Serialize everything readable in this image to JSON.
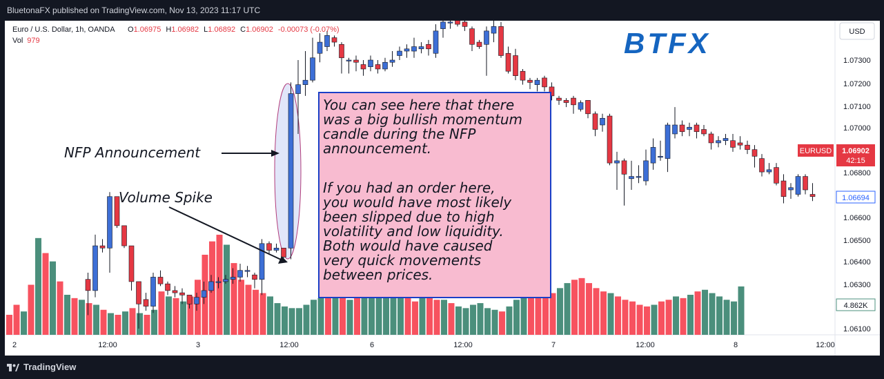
{
  "header": {
    "publisher_line": "BluetonaFX published on TradingView.com, Nov 13, 2023 11:17 UTC"
  },
  "footer": {
    "brand": "TradingView"
  },
  "legend": {
    "symbol": "Euro / U.S. Dollar, 1h, OANDA",
    "open_label": "O",
    "open": "1.06975",
    "high_label": "H",
    "high": "1.06982",
    "low_label": "L",
    "low": "1.06892",
    "close_label": "C",
    "close": "1.06902",
    "change": "-0.00073 (-0.07%)",
    "vol_label": "Vol",
    "vol_value": "979"
  },
  "currency_button": "USD",
  "logo_text": "BTFX",
  "price_scale": {
    "ticks": [
      "1.07300",
      "1.07200",
      "1.07100",
      "1.07000",
      "1.06800",
      "1.06600",
      "1.06500",
      "1.06400",
      "1.06300",
      "1.06100"
    ],
    "symbol_tag": "EURUSD",
    "last_price": "1.06902",
    "countdown": "42:15",
    "crosshair_price": "1.06694",
    "volume_tag": "4.862K"
  },
  "time_axis": [
    "2",
    "12:00",
    "3",
    "12:00",
    "6",
    "12:00",
    "7",
    "12:00",
    "8",
    "12:00"
  ],
  "annotations": {
    "nfp": "NFP Announcement",
    "volume_spike": "Volume Spike",
    "note_lines_1": [
      "You can see here that there",
      "was a big bullish momentum",
      "candle during the NFP",
      "announcement."
    ],
    "note_lines_2": [
      "If you had an order here,",
      "you would have most likely",
      "been slipped due to high",
      "volatility and low liquidity.",
      "Both would have caused",
      "very quick movements",
      "between prices."
    ]
  },
  "colors": {
    "up": "#3d6fd6",
    "down": "#e53843",
    "vol_up": "#4b8f7c",
    "vol_down": "#f7525f",
    "note_bg": "#f8bbd0",
    "note_border": "#1a3fc7"
  },
  "chart_data": {
    "type": "candlestick",
    "symbol": "EURUSD",
    "timeframe": "1h",
    "ylim": [
      1.0605,
      1.0745
    ],
    "price_ticks": [
      1.073,
      1.072,
      1.071,
      1.07,
      1.068,
      1.066,
      1.065,
      1.064,
      1.063,
      1.061
    ],
    "candles": [
      [
        1.0632,
        1.0627,
        1.0635,
        1.0616
      ],
      [
        1.0627,
        1.0647,
        1.0652,
        1.0624
      ],
      [
        1.0647,
        1.0646,
        1.065,
        1.0644
      ],
      [
        1.0646,
        1.0669,
        1.0671,
        1.0635
      ],
      [
        1.0669,
        1.0656,
        1.0667,
        1.0655
      ],
      [
        1.0656,
        1.0647,
        1.0652,
        1.0646
      ],
      [
        1.0647,
        1.0631,
        1.0644,
        1.0627
      ],
      [
        1.0631,
        1.0621,
        1.063,
        1.061
      ],
      [
        1.0623,
        1.062,
        1.0626,
        1.0618
      ],
      [
        1.062,
        1.0633,
        1.0635,
        1.0617
      ],
      [
        1.0633,
        1.063,
        1.0636,
        1.0629
      ],
      [
        1.063,
        1.0627,
        1.0631,
        1.0625
      ],
      [
        1.0627,
        1.0626,
        1.0629,
        1.0624
      ],
      [
        1.0626,
        1.0625,
        1.0628,
        1.0621
      ],
      [
        1.0625,
        1.0621,
        1.0624,
        1.0619
      ],
      [
        1.0621,
        1.0624,
        1.0626,
        1.0618
      ],
      [
        1.0624,
        1.0627,
        1.0631,
        1.0621
      ],
      [
        1.0627,
        1.0631,
        1.0634,
        1.0626
      ],
      [
        1.0631,
        1.0631,
        1.0633,
        1.0628
      ],
      [
        1.0631,
        1.0632,
        1.0634,
        1.063
      ],
      [
        1.0632,
        1.0633,
        1.0637,
        1.063
      ],
      [
        1.0633,
        1.0636,
        1.0639,
        1.0631
      ],
      [
        1.0636,
        1.0636,
        1.0638,
        1.0633
      ],
      [
        1.0634,
        1.0632,
        1.0635,
        1.0628
      ],
      [
        1.0632,
        1.0648,
        1.065,
        1.0625
      ],
      [
        1.0648,
        1.0645,
        1.0649,
        1.0643
      ],
      [
        1.0645,
        1.0646,
        1.0648,
        1.0644
      ],
      [
        1.0646,
        1.0642,
        1.0646,
        1.0641
      ],
      [
        1.0646,
        1.0715,
        1.072,
        1.0641
      ],
      [
        1.0715,
        1.0719,
        1.073,
        1.0697
      ],
      [
        1.0719,
        1.0721,
        1.0734,
        1.0714
      ],
      [
        1.0721,
        1.0731,
        1.074,
        1.072
      ],
      [
        1.0733,
        1.0738,
        1.0742,
        1.0729
      ],
      [
        1.0736,
        1.0741,
        1.0743,
        1.0734
      ],
      [
        1.074,
        1.0738,
        1.0741,
        1.0736
      ],
      [
        1.0737,
        1.0731,
        1.0738,
        1.0724
      ],
      [
        1.073,
        1.073,
        1.0731,
        1.0724
      ],
      [
        1.073,
        1.0729,
        1.0732,
        1.0725
      ],
      [
        1.0728,
        1.0726,
        1.073,
        1.0723
      ],
      [
        1.0727,
        1.073,
        1.0732,
        1.0725
      ],
      [
        1.0728,
        1.0726,
        1.073,
        1.0724
      ],
      [
        1.0726,
        1.0729,
        1.0731,
        1.0725
      ],
      [
        1.0729,
        1.073,
        1.0734,
        1.0727
      ],
      [
        1.0732,
        1.0734,
        1.0736,
        1.073
      ],
      [
        1.0734,
        1.0735,
        1.0737,
        1.0731
      ],
      [
        1.0734,
        1.0736,
        1.074,
        1.0731
      ],
      [
        1.0735,
        1.0736,
        1.0738,
        1.0733
      ],
      [
        1.0737,
        1.0735,
        1.0739,
        1.0732
      ],
      [
        1.0733,
        1.0743,
        1.0746,
        1.0731
      ],
      [
        1.0744,
        1.0747,
        1.0748,
        1.074
      ],
      [
        1.0747,
        1.0747,
        1.0749,
        1.0744
      ],
      [
        1.0748,
        1.0746,
        1.0748,
        1.0745
      ],
      [
        1.0747,
        1.0745,
        1.0748,
        1.0743
      ],
      [
        1.0744,
        1.0737,
        1.0745,
        1.0734
      ],
      [
        1.0738,
        1.0736,
        1.0739,
        1.0735
      ],
      [
        1.0737,
        1.0743,
        1.0745,
        1.0723
      ],
      [
        1.0742,
        1.0745,
        1.0748,
        1.0738
      ],
      [
        1.0745,
        1.0732,
        1.0747,
        1.0731
      ],
      [
        1.0733,
        1.0725,
        1.0736,
        1.0724
      ],
      [
        1.0732,
        1.0723,
        1.0735,
        1.0721
      ],
      [
        1.0725,
        1.0721,
        1.0726,
        1.0719
      ],
      [
        1.0721,
        1.072,
        1.0722,
        1.0717
      ],
      [
        1.0719,
        1.0721,
        1.0722,
        1.0716
      ],
      [
        1.0722,
        1.0718,
        1.0723,
        1.0716
      ],
      [
        1.0718,
        1.0714,
        1.072,
        1.0712
      ],
      [
        1.0713,
        1.0712,
        1.0714,
        1.071
      ],
      [
        1.0712,
        1.0711,
        1.0713,
        1.0709
      ],
      [
        1.0713,
        1.071,
        1.0714,
        1.0706
      ],
      [
        1.0708,
        1.0711,
        1.0712,
        1.0707
      ],
      [
        1.0712,
        1.0706,
        1.0712,
        1.0704
      ],
      [
        1.0706,
        1.0699,
        1.0707,
        1.0696
      ],
      [
        1.0701,
        1.0704,
        1.0706,
        1.0698
      ],
      [
        1.0705,
        1.0684,
        1.0706,
        1.0683
      ],
      [
        1.0684,
        1.0685,
        1.0689,
        1.0672
      ],
      [
        1.0685,
        1.0679,
        1.0686,
        1.0665
      ],
      [
        1.0677,
        1.0678,
        1.0685,
        1.0672
      ],
      [
        1.0678,
        1.0678,
        1.0683,
        1.0675
      ],
      [
        1.0676,
        1.0685,
        1.069,
        1.0674
      ],
      [
        1.0684,
        1.0691,
        1.0695,
        1.0681
      ],
      [
        1.0687,
        1.0687,
        1.0694,
        1.0685
      ],
      [
        1.0686,
        1.0701,
        1.0702,
        1.068
      ],
      [
        1.0697,
        1.0701,
        1.0709,
        1.0695
      ],
      [
        1.0701,
        1.0698,
        1.0703,
        1.0696
      ],
      [
        1.0699,
        1.07,
        1.0702,
        1.0696
      ],
      [
        1.0701,
        1.0698,
        1.0702,
        1.0695
      ],
      [
        1.0699,
        1.0697,
        1.0701,
        1.0696
      ],
      [
        1.0697,
        1.0693,
        1.0698,
        1.069
      ],
      [
        1.0693,
        1.0694,
        1.0696,
        1.0691
      ],
      [
        1.0694,
        1.0695,
        1.0697,
        1.0692
      ],
      [
        1.0694,
        1.0691,
        1.0697,
        1.0689
      ],
      [
        1.0693,
        1.0692,
        1.0696,
        1.069
      ],
      [
        1.0692,
        1.069,
        1.0694,
        1.0688
      ],
      [
        1.069,
        1.0687,
        1.0692,
        1.0682
      ],
      [
        1.0686,
        1.068,
        1.0688,
        1.0678
      ],
      [
        1.068,
        1.0681,
        1.0684,
        1.0679
      ],
      [
        1.0682,
        1.0675,
        1.0684,
        1.0674
      ],
      [
        1.0676,
        1.0669,
        1.0679,
        1.0666
      ],
      [
        1.0672,
        1.0673,
        1.0675,
        1.0668
      ],
      [
        1.067,
        1.0678,
        1.0679,
        1.0669
      ],
      [
        1.0678,
        1.0672,
        1.0679,
        1.067
      ],
      [
        1.067,
        1.0669,
        1.0675,
        1.0667
      ]
    ],
    "volume_ylim": [
      0,
      6000
    ],
    "volumes": [
      1200,
      1800,
      1400,
      3000,
      5800,
      4900,
      4400,
      3200,
      2400,
      2200,
      2100,
      1900,
      1800,
      1500,
      1300,
      1200,
      1400,
      1600,
      1300,
      1200,
      1500,
      2600,
      2300,
      2200,
      2000,
      2300,
      3300,
      4800,
      5600,
      6000,
      5400,
      4300,
      3300,
      3000,
      2700,
      2500,
      2300,
      1900,
      1700,
      1600,
      1600,
      1800,
      2100,
      2200,
      2600,
      2400,
      2300,
      2100,
      2600,
      3300,
      3400,
      3600,
      3100,
      2700,
      2500,
      2300,
      2000,
      2700,
      2200,
      2100,
      2100,
      1900,
      1700,
      1600,
      1800,
      1900,
      1600,
      1500,
      1400,
      1700,
      2100,
      2300,
      2600,
      2400,
      2200,
      2500,
      2800,
      3100,
      3300,
      3400,
      3100,
      2800,
      2600,
      2500,
      2300,
      2100,
      2000,
      1800,
      1700,
      1800,
      2000,
      2100,
      2300,
      2200,
      2400,
      2600,
      2700,
      2500,
      2300,
      2100,
      2000,
      2900
    ]
  }
}
